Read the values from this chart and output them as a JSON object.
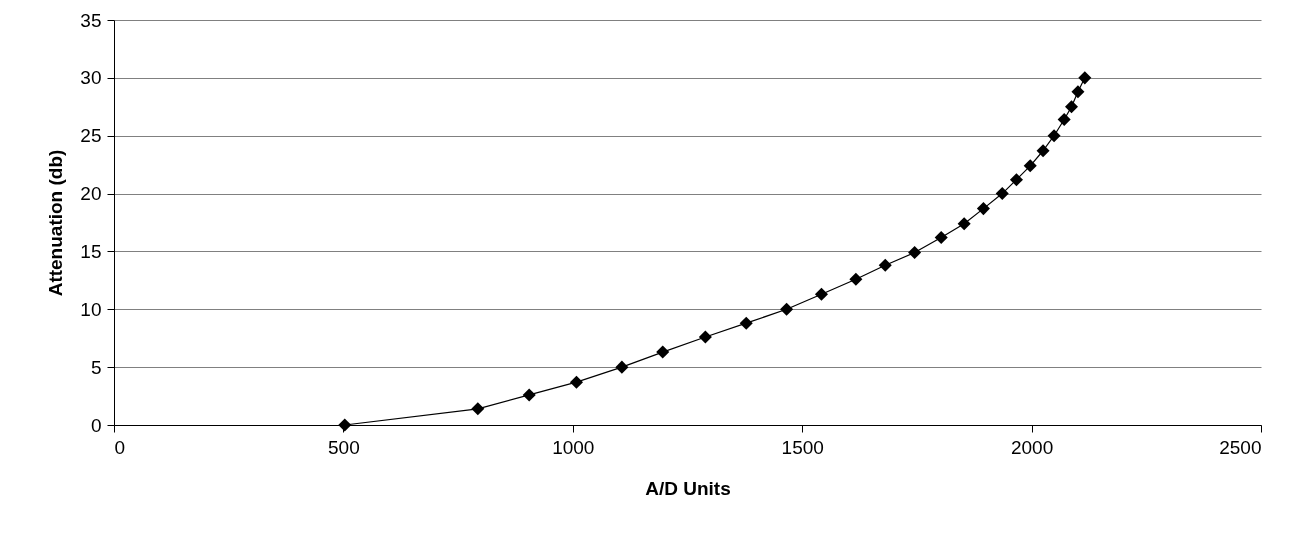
{
  "chart_data": {
    "type": "line",
    "xlabel": "A/D Units",
    "ylabel": "Attenuation (db)",
    "x": [
      503,
      793,
      905,
      1008,
      1107,
      1196,
      1289,
      1378,
      1466,
      1542,
      1617,
      1681,
      1745,
      1803,
      1853,
      1895,
      1936,
      1967,
      1997,
      2025,
      2049,
      2071,
      2087,
      2101,
      2116
    ],
    "series": [
      {
        "color": "#000000",
        "values": [
          0,
          1.4,
          2.6,
          3.7,
          5.0,
          6.3,
          7.6,
          8.8,
          10.0,
          11.3,
          12.6,
          13.8,
          14.9,
          16.2,
          17.4,
          18.7,
          20.0,
          21.2,
          22.4,
          23.7,
          25.0,
          26.4,
          27.5,
          28.8,
          30.0
        ]
      }
    ],
    "xlim": [
      0,
      2500
    ],
    "xticks": [
      0,
      500,
      1000,
      1500,
      2000,
      2500
    ],
    "ylim": [
      0,
      35
    ],
    "yticks": [
      0,
      5,
      10,
      15,
      20,
      25,
      30,
      35
    ],
    "grid": "y",
    "marker": "diamond",
    "line_style": "solid"
  }
}
